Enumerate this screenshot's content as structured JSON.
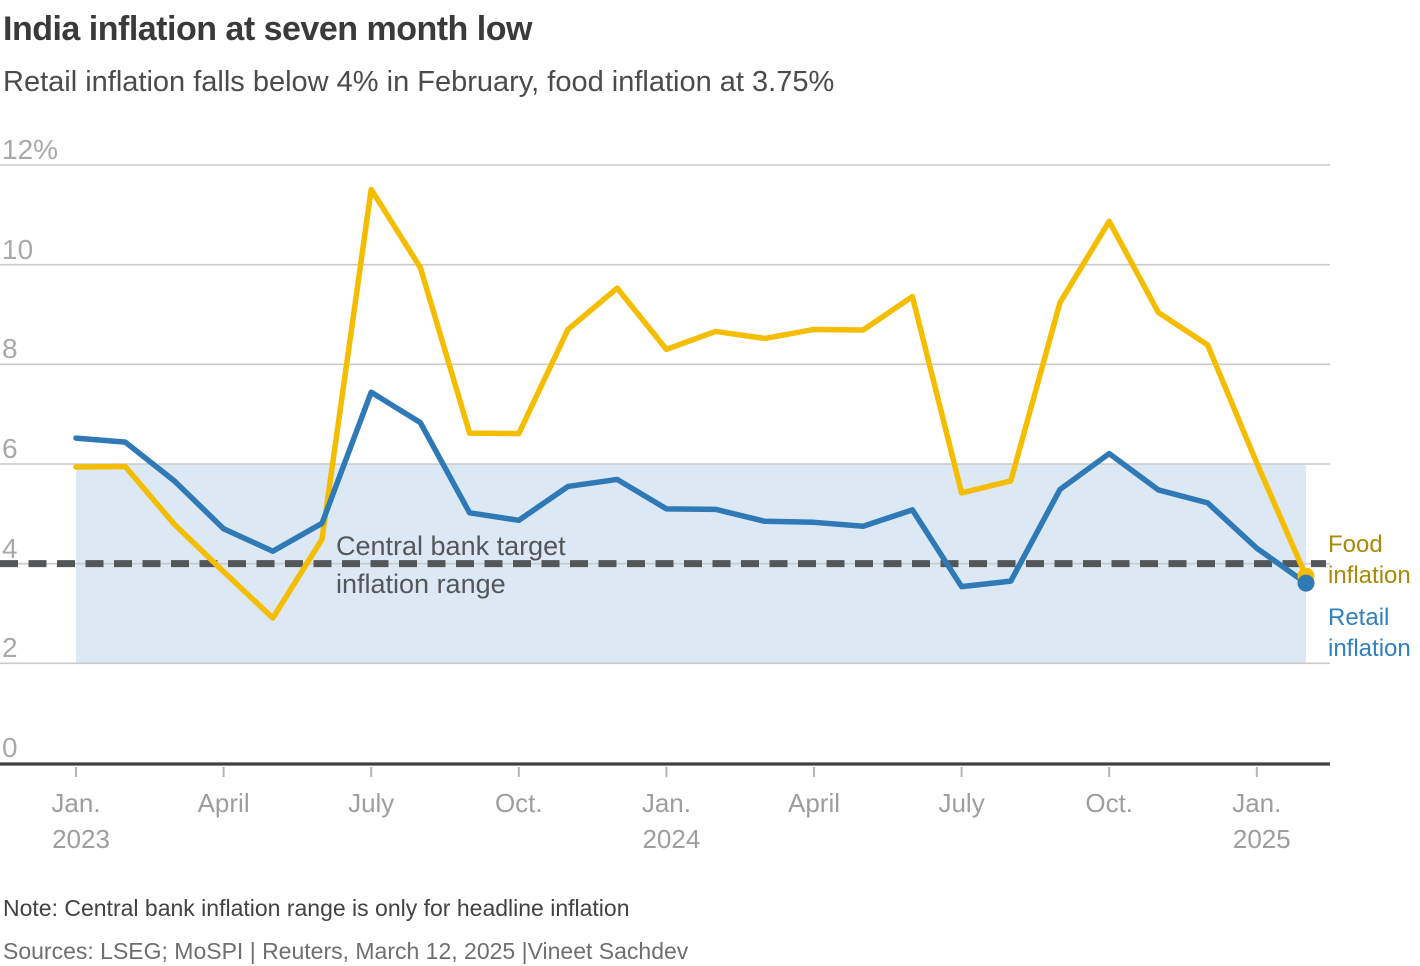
{
  "header": {
    "title": "India inflation at seven month low",
    "subtitle": "Retail inflation falls below 4% in February, food inflation at 3.75%"
  },
  "chart_data": {
    "type": "line",
    "title": "India inflation at seven month low",
    "subtitle": "Retail inflation falls below 4% in February, food inflation at 3.75%",
    "x": [
      "Jan 2023",
      "Feb 2023",
      "Mar 2023",
      "Apr 2023",
      "May 2023",
      "Jun 2023",
      "Jul 2023",
      "Aug 2023",
      "Sep 2023",
      "Oct 2023",
      "Nov 2023",
      "Dec 2023",
      "Jan 2024",
      "Feb 2024",
      "Mar 2024",
      "Apr 2024",
      "May 2024",
      "Jun 2024",
      "Jul 2024",
      "Aug 2024",
      "Sep 2024",
      "Oct 2024",
      "Nov 2024",
      "Dec 2024",
      "Jan 2025",
      "Feb 2025"
    ],
    "series": [
      {
        "name": "Food inflation",
        "color": "#f4bd00",
        "label_color": "#a98908",
        "end_dot": true,
        "values": [
          5.94,
          5.95,
          4.79,
          3.84,
          2.91,
          4.49,
          11.51,
          9.94,
          6.62,
          6.61,
          8.7,
          9.53,
          8.3,
          8.66,
          8.52,
          8.7,
          8.69,
          9.36,
          5.42,
          5.66,
          9.24,
          10.87,
          9.04,
          8.39,
          6.02,
          3.75
        ]
      },
      {
        "name": "Retail inflation",
        "color": "#2e79b6",
        "label_color": "#3080bf",
        "end_dot": true,
        "values": [
          6.52,
          6.44,
          5.66,
          4.7,
          4.25,
          4.81,
          7.44,
          6.83,
          5.02,
          4.87,
          5.55,
          5.69,
          5.1,
          5.09,
          4.85,
          4.83,
          4.75,
          5.08,
          3.54,
          3.65,
          5.49,
          6.21,
          5.48,
          5.22,
          4.31,
          3.61
        ]
      }
    ],
    "ylim": [
      0,
      12
    ],
    "grid": true,
    "legend_position": "right",
    "y_ticks": [
      {
        "v": 0,
        "label": "0"
      },
      {
        "v": 2,
        "label": "2"
      },
      {
        "v": 4,
        "label": "4"
      },
      {
        "v": 6,
        "label": "6"
      },
      {
        "v": 8,
        "label": "8"
      },
      {
        "v": 10,
        "label": "10"
      },
      {
        "v": 12,
        "label": "12%"
      }
    ],
    "x_ticks": [
      {
        "m": 0,
        "label": "Jan.",
        "year": "2023"
      },
      {
        "m": 3,
        "label": "April",
        "year": ""
      },
      {
        "m": 6,
        "label": "July",
        "year": ""
      },
      {
        "m": 9,
        "label": "Oct.",
        "year": ""
      },
      {
        "m": 12,
        "label": "Jan.",
        "year": "2024"
      },
      {
        "m": 15,
        "label": "April",
        "year": ""
      },
      {
        "m": 18,
        "label": "July",
        "year": ""
      },
      {
        "m": 21,
        "label": "Oct.",
        "year": ""
      },
      {
        "m": 24,
        "label": "Jan.",
        "year": "2025"
      }
    ],
    "band": {
      "from": 2,
      "to": 6,
      "color": "#dce8f4"
    },
    "target_line": {
      "value": 4,
      "color": "#54575a",
      "annotation_line1": "Central bank target",
      "annotation_line2": "inflation range"
    },
    "legend": [
      {
        "label": "Food inflation",
        "color": "#a98908"
      },
      {
        "label": "Retail inflation",
        "color": "#3080bf"
      }
    ],
    "axis_colors": {
      "gridline": "#cacaca",
      "baseline": "#404040",
      "tick": "#b5b5b5"
    }
  },
  "footer": {
    "note": "Note: Central bank inflation range is only for headline inflation",
    "sources": "Sources: LSEG; MoSPI | Reuters, March 12, 2025 |Vineet Sachdev"
  }
}
